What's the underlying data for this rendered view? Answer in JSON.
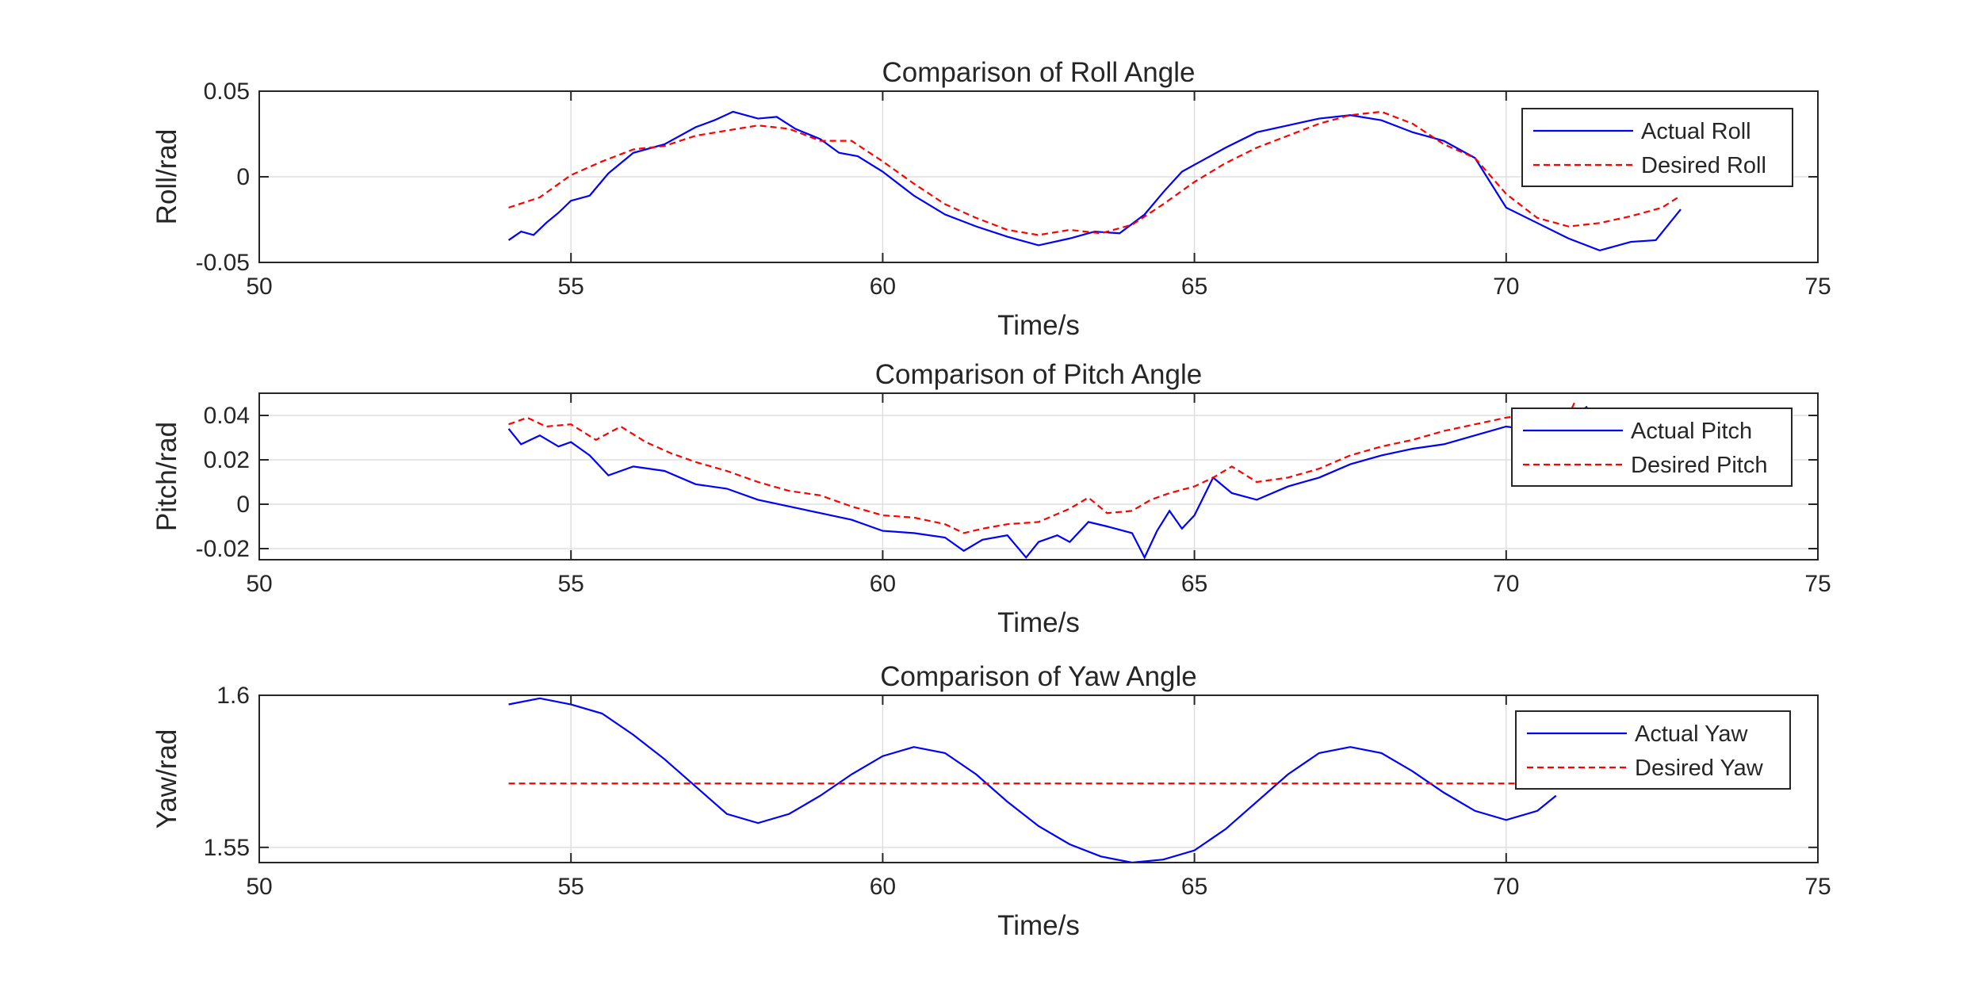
{
  "colors": {
    "actual": "#0000ff",
    "desired": "#ff0000",
    "axis": "#262626",
    "grid": "#dfdfdf",
    "background": "#ffffff"
  },
  "chart_data": [
    {
      "type": "line",
      "title": "Comparison of Roll Angle",
      "xlabel": "Time/s",
      "ylabel": "Roll/rad",
      "xlim": [
        50,
        75
      ],
      "ylim": [
        -0.05,
        0.05
      ],
      "xticks": [
        50,
        55,
        60,
        65,
        70,
        75
      ],
      "xtick_labels": [
        "50",
        "55",
        "60",
        "65",
        "70",
        "75"
      ],
      "yticks": [
        -0.05,
        0,
        0.05
      ],
      "ytick_labels": [
        "-0.05",
        "0",
        "0.05"
      ],
      "grid": true,
      "legend_position": "top-right",
      "series": [
        {
          "name": "Actual Roll",
          "color": "#0000ff",
          "style": "solid",
          "x": [
            54.0,
            54.2,
            54.4,
            54.6,
            54.8,
            55.0,
            55.3,
            55.6,
            56.0,
            56.5,
            57.0,
            57.3,
            57.6,
            58.0,
            58.3,
            58.6,
            59.0,
            59.3,
            59.6,
            60.0,
            60.5,
            61.0,
            61.5,
            62.0,
            62.5,
            63.0,
            63.4,
            63.8,
            64.2,
            64.5,
            64.8,
            65.1,
            65.5,
            66.0,
            66.5,
            67.0,
            67.5,
            68.0,
            68.5,
            69.0,
            69.5,
            70.0,
            70.5,
            71.0,
            71.5,
            72.0,
            72.4,
            72.8
          ],
          "values": [
            -0.037,
            -0.032,
            -0.034,
            -0.027,
            -0.021,
            -0.014,
            -0.011,
            0.002,
            0.014,
            0.019,
            0.029,
            0.033,
            0.038,
            0.034,
            0.035,
            0.028,
            0.022,
            0.014,
            0.012,
            0.003,
            -0.011,
            -0.022,
            -0.029,
            -0.035,
            -0.04,
            -0.036,
            -0.032,
            -0.033,
            -0.022,
            -0.009,
            0.003,
            0.009,
            0.017,
            0.026,
            0.03,
            0.034,
            0.036,
            0.033,
            0.026,
            0.021,
            0.011,
            -0.018,
            -0.027,
            -0.036,
            -0.043,
            -0.038,
            -0.037,
            -0.019
          ]
        },
        {
          "name": "Desired Roll",
          "color": "#ff0000",
          "style": "dashed",
          "x": [
            54.0,
            54.5,
            55.0,
            55.5,
            56.0,
            56.5,
            57.0,
            57.5,
            58.0,
            58.5,
            59.0,
            59.5,
            60.0,
            60.5,
            61.0,
            61.5,
            62.0,
            62.5,
            63.0,
            63.5,
            64.0,
            64.5,
            65.0,
            65.5,
            66.0,
            66.5,
            67.0,
            67.5,
            68.0,
            68.5,
            69.0,
            69.5,
            70.0,
            70.5,
            71.0,
            71.5,
            72.0,
            72.5,
            72.8
          ],
          "values": [
            -0.018,
            -0.012,
            0.001,
            0.009,
            0.016,
            0.018,
            0.024,
            0.027,
            0.03,
            0.028,
            0.021,
            0.021,
            0.009,
            -0.004,
            -0.016,
            -0.024,
            -0.031,
            -0.034,
            -0.031,
            -0.033,
            -0.028,
            -0.016,
            -0.003,
            0.008,
            0.017,
            0.024,
            0.031,
            0.036,
            0.038,
            0.031,
            0.019,
            0.011,
            -0.01,
            -0.024,
            -0.029,
            -0.027,
            -0.023,
            -0.018,
            -0.011
          ]
        }
      ]
    },
    {
      "type": "line",
      "title": "Comparison of Pitch Angle",
      "xlabel": "Time/s",
      "ylabel": "Pitch/rad",
      "xlim": [
        50,
        75
      ],
      "ylim": [
        -0.025,
        0.05
      ],
      "xticks": [
        50,
        55,
        60,
        65,
        70,
        75
      ],
      "xtick_labels": [
        "50",
        "55",
        "60",
        "65",
        "70",
        "75"
      ],
      "yticks": [
        -0.02,
        0,
        0.02,
        0.04
      ],
      "ytick_labels": [
        "-0.02",
        "0",
        "0.02",
        "0.04"
      ],
      "grid": true,
      "legend_position": "top-right",
      "series": [
        {
          "name": "Actual Pitch",
          "color": "#0000ff",
          "style": "solid",
          "x": [
            54.0,
            54.2,
            54.5,
            54.8,
            55.0,
            55.3,
            55.6,
            56.0,
            56.5,
            57.0,
            57.5,
            58.0,
            58.5,
            59.0,
            59.5,
            60.0,
            60.5,
            61.0,
            61.3,
            61.6,
            62.0,
            62.3,
            62.5,
            62.8,
            63.0,
            63.3,
            63.6,
            64.0,
            64.2,
            64.4,
            64.6,
            64.8,
            65.0,
            65.3,
            65.6,
            66.0,
            66.5,
            67.0,
            67.5,
            68.0,
            68.5,
            69.0,
            69.5,
            70.0,
            70.5,
            71.0,
            71.3
          ],
          "values": [
            0.034,
            0.027,
            0.031,
            0.026,
            0.028,
            0.022,
            0.013,
            0.017,
            0.015,
            0.009,
            0.007,
            0.002,
            -0.001,
            -0.004,
            -0.007,
            -0.012,
            -0.013,
            -0.015,
            -0.021,
            -0.016,
            -0.014,
            -0.024,
            -0.017,
            -0.014,
            -0.017,
            -0.008,
            -0.01,
            -0.013,
            -0.024,
            -0.012,
            -0.003,
            -0.011,
            -0.005,
            0.012,
            0.005,
            0.002,
            0.008,
            0.012,
            0.018,
            0.022,
            0.025,
            0.027,
            0.031,
            0.035,
            0.033,
            0.038,
            0.044
          ]
        },
        {
          "name": "Desired Pitch",
          "color": "#ff0000",
          "style": "dashed",
          "x": [
            54.0,
            54.3,
            54.6,
            55.0,
            55.4,
            55.8,
            56.2,
            56.6,
            57.0,
            57.5,
            58.0,
            58.5,
            59.0,
            59.5,
            60.0,
            60.5,
            61.0,
            61.3,
            61.6,
            62.0,
            62.5,
            63.0,
            63.3,
            63.6,
            64.0,
            64.3,
            64.6,
            65.0,
            65.3,
            65.6,
            66.0,
            66.5,
            67.0,
            67.5,
            68.0,
            68.5,
            69.0,
            69.5,
            70.0,
            70.5,
            71.0,
            71.1
          ],
          "values": [
            0.036,
            0.039,
            0.035,
            0.036,
            0.029,
            0.035,
            0.028,
            0.023,
            0.019,
            0.015,
            0.01,
            0.006,
            0.004,
            -0.001,
            -0.005,
            -0.006,
            -0.009,
            -0.013,
            -0.011,
            -0.009,
            -0.008,
            -0.002,
            0.003,
            -0.004,
            -0.003,
            0.002,
            0.005,
            0.008,
            0.012,
            0.017,
            0.01,
            0.012,
            0.016,
            0.022,
            0.026,
            0.029,
            0.033,
            0.036,
            0.039,
            0.041,
            0.04,
            0.046
          ]
        }
      ]
    },
    {
      "type": "line",
      "title": "Comparison of Yaw Angle",
      "xlabel": "Time/s",
      "ylabel": "Yaw/rad",
      "xlim": [
        50,
        75
      ],
      "ylim": [
        1.545,
        1.6
      ],
      "xticks": [
        50,
        55,
        60,
        65,
        70,
        75
      ],
      "xtick_labels": [
        "50",
        "55",
        "60",
        "65",
        "70",
        "75"
      ],
      "yticks": [
        1.55,
        1.6
      ],
      "ytick_labels": [
        "1.55",
        "1.6"
      ],
      "grid": true,
      "legend_position": "top-right",
      "series": [
        {
          "name": "Actual Yaw",
          "color": "#0000ff",
          "style": "solid",
          "x": [
            54.0,
            54.5,
            55.0,
            55.5,
            56.0,
            56.5,
            57.0,
            57.5,
            58.0,
            58.5,
            59.0,
            59.5,
            60.0,
            60.5,
            61.0,
            61.5,
            62.0,
            62.5,
            63.0,
            63.5,
            64.0,
            64.5,
            65.0,
            65.5,
            66.0,
            66.5,
            67.0,
            67.5,
            68.0,
            68.5,
            69.0,
            69.5,
            70.0,
            70.5,
            70.8
          ],
          "values": [
            1.597,
            1.599,
            1.597,
            1.594,
            1.587,
            1.579,
            1.57,
            1.561,
            1.558,
            1.561,
            1.567,
            1.574,
            1.58,
            1.583,
            1.581,
            1.574,
            1.565,
            1.557,
            1.551,
            1.547,
            1.545,
            1.546,
            1.549,
            1.556,
            1.565,
            1.574,
            1.581,
            1.583,
            1.581,
            1.575,
            1.568,
            1.562,
            1.559,
            1.562,
            1.567
          ]
        },
        {
          "name": "Desired Yaw",
          "color": "#ff0000",
          "style": "dashed",
          "x": [
            54.0,
            71.0
          ],
          "values": [
            1.571,
            1.571
          ]
        }
      ]
    }
  ]
}
